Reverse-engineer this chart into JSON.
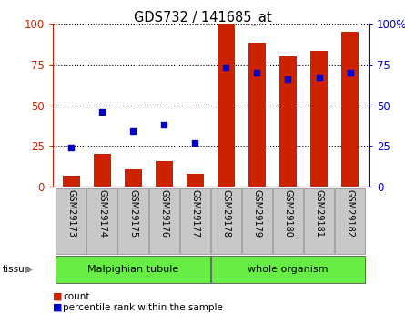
{
  "title": "GDS732 / 141685_at",
  "samples": [
    "GSM29173",
    "GSM29174",
    "GSM29175",
    "GSM29176",
    "GSM29177",
    "GSM29178",
    "GSM29179",
    "GSM29180",
    "GSM29181",
    "GSM29182"
  ],
  "count_values": [
    7,
    20,
    11,
    16,
    8,
    100,
    88,
    80,
    83,
    95
  ],
  "percentile_values": [
    24,
    46,
    34,
    38,
    27,
    73,
    70,
    66,
    67,
    70
  ],
  "group1_label": "Malpighian tubule",
  "group1_indices": [
    0,
    1,
    2,
    3,
    4
  ],
  "group2_label": "whole organism",
  "group2_indices": [
    5,
    6,
    7,
    8,
    9
  ],
  "group_color": "#66EE44",
  "bar_color": "#CC2200",
  "dot_color": "#0000CC",
  "ylim": [
    0,
    100
  ],
  "yticks": [
    0,
    25,
    50,
    75,
    100
  ],
  "left_axis_color": "#CC2200",
  "right_axis_color": "#0000CC",
  "bar_width": 0.55,
  "tick_label_bg": "#C8C8C8",
  "tick_label_edgecolor": "#999999",
  "tissue_arrow_color": "#888888"
}
